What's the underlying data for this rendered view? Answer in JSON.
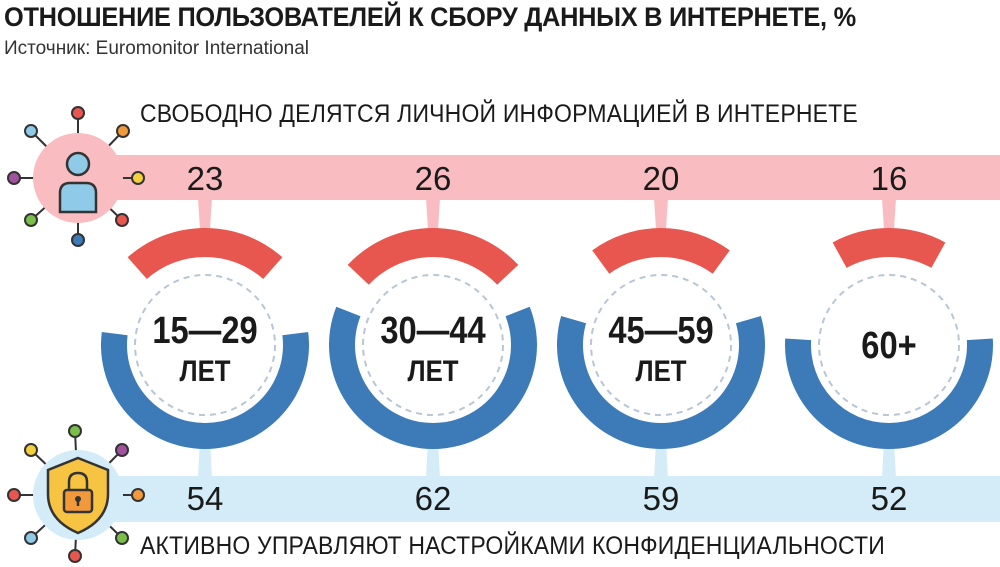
{
  "title": "ОТНОШЕНИЕ ПОЛЬЗОВАТЕЛЕЙ К СБОРУ ДАННЫХ В ИНТЕРНЕТЕ, %",
  "source": "Источник: Euromonitor International",
  "colors": {
    "share": "#e8574f",
    "privacy": "#3d7ab8",
    "share_band": "#f9bcc0",
    "privacy_band": "#d3ecf8",
    "ring_dash": "#b9c6d3"
  },
  "icons": {
    "top": "user-network-icon",
    "bottom": "shield-lock-network-icon"
  },
  "chart_data": {
    "type": "bar",
    "categories": [
      "15—29 ЛЕТ",
      "30—44 ЛЕТ",
      "45—59 ЛЕТ",
      "60+"
    ],
    "category_lines": [
      [
        "15—29",
        "ЛЕТ"
      ],
      [
        "30—44",
        "ЛЕТ"
      ],
      [
        "45—59",
        "ЛЕТ"
      ],
      [
        "60+"
      ]
    ],
    "series": [
      {
        "name": "СВОБОДНО ДЕЛЯТСЯ ЛИЧНОЙ ИНФОРМАЦИЕЙ В ИНТЕРНЕТЕ",
        "values": [
          23,
          26,
          20,
          16
        ]
      },
      {
        "name": "АКТИВНО УПРАВЛЯЮТ НАСТРОЙКАМИ КОНФИДЕНЦИАЛЬНОСТИ",
        "values": [
          54,
          62,
          59,
          52
        ]
      }
    ]
  }
}
